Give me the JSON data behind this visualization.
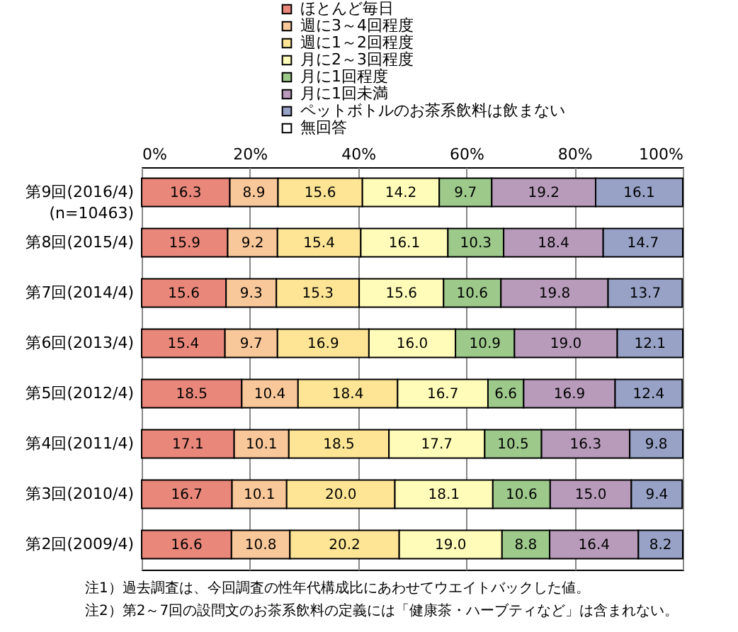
{
  "chart_data": {
    "type": "bar",
    "orientation": "horizontal",
    "stacked": true,
    "grid": "x",
    "legend": "top",
    "categories": [
      "第9回(2016/4)(n=10463)",
      "第8回(2015/4)",
      "第7回(2014/4)",
      "第6回(2013/4)",
      "第5回(2012/4)",
      "第4回(2011/4)",
      "第3回(2010/4)",
      "第2回(2009/4)"
    ],
    "xlim": [
      0,
      100
    ],
    "xticks": [
      {
        "value": 0,
        "label": "0%"
      },
      {
        "value": 20,
        "label": "20%"
      },
      {
        "value": 40,
        "label": "40%"
      },
      {
        "value": 60,
        "label": "60%"
      },
      {
        "value": 80,
        "label": "80%"
      },
      {
        "value": 100,
        "label": "100%"
      }
    ],
    "series": [
      {
        "name": "ほとんど毎日",
        "color": "#e8877a",
        "values": [
          16.3,
          15.9,
          15.6,
          15.4,
          18.5,
          17.1,
          16.7,
          16.6
        ],
        "value_labels": [
          "16.3",
          "15.9",
          "15.6",
          "15.4",
          "18.5",
          "17.1",
          "16.7",
          "16.6"
        ]
      },
      {
        "name": "週に3～4回程度",
        "color": "#f9c89a",
        "values": [
          8.9,
          9.2,
          9.3,
          9.7,
          10.4,
          10.1,
          10.1,
          10.8
        ],
        "value_labels": [
          "8.9",
          "9.2",
          "9.3",
          "9.7",
          "10.4",
          "10.1",
          "10.1",
          "10.8"
        ]
      },
      {
        "name": "週に1～2回程度",
        "color": "#fde595",
        "values": [
          15.6,
          15.4,
          15.3,
          16.9,
          18.4,
          18.5,
          20.0,
          20.2
        ],
        "value_labels": [
          "15.6",
          "15.4",
          "15.3",
          "16.9",
          "18.4",
          "18.5",
          "20.0",
          "20.2"
        ]
      },
      {
        "name": "月に2～3回程度",
        "color": "#fffcb9",
        "values": [
          14.2,
          16.1,
          15.6,
          16.0,
          16.7,
          17.7,
          18.1,
          19.0
        ],
        "value_labels": [
          "14.2",
          "16.1",
          "15.6",
          "16.0",
          "16.7",
          "17.7",
          "18.1",
          "19.0"
        ]
      },
      {
        "name": "月に1回程度",
        "color": "#9dc98b",
        "values": [
          9.7,
          10.3,
          10.6,
          10.9,
          6.6,
          10.5,
          10.6,
          8.8
        ],
        "value_labels": [
          "9.7",
          "10.3",
          "10.6",
          "10.9",
          "6.6",
          "10.5",
          "10.6",
          "8.8"
        ]
      },
      {
        "name": "月に1回未満",
        "color": "#b89bbb",
        "values": [
          19.2,
          18.4,
          19.8,
          19.0,
          16.9,
          16.3,
          15.0,
          16.4
        ],
        "value_labels": [
          "19.2",
          "18.4",
          "19.8",
          "19.0",
          "16.9",
          "16.3",
          "15.0",
          "16.4"
        ]
      },
      {
        "name": "ペットボトルのお茶系飲料は飲まない",
        "color": "#97a2c6",
        "values": [
          16.1,
          14.7,
          13.7,
          12.1,
          12.4,
          9.8,
          9.4,
          8.2
        ],
        "value_labels": [
          "16.1",
          "14.7",
          "13.7",
          "12.1",
          "12.4",
          "9.8",
          "9.4",
          "8.2"
        ]
      },
      {
        "name": "無回答",
        "color": "#ffffff",
        "values": [
          null,
          null,
          null,
          null,
          null,
          null,
          null,
          null
        ]
      }
    ],
    "annotations": [
      "注1）過去調査は、今回調査の性年代構成比にあわせてウエイトバックした値。",
      "注2）第2～7回の設問文のお茶系飲料の定義には「健康茶・ハーブティなど」は含まれない。"
    ]
  }
}
